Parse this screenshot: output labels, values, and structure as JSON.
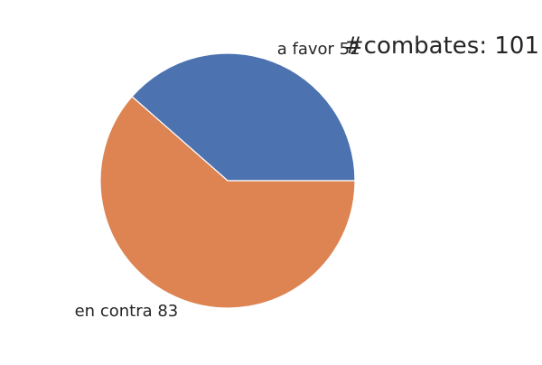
{
  "chart_data": {
    "type": "pie",
    "title": "#combates: 101",
    "slices": [
      {
        "label": "a favor 52",
        "category": "a favor",
        "value": 52,
        "color": "#4c72b0"
      },
      {
        "label": "en contra 83",
        "category": "en contra",
        "value": 83,
        "color": "#dd8452"
      }
    ],
    "edge_color": "#ffffff",
    "legend": "none"
  }
}
